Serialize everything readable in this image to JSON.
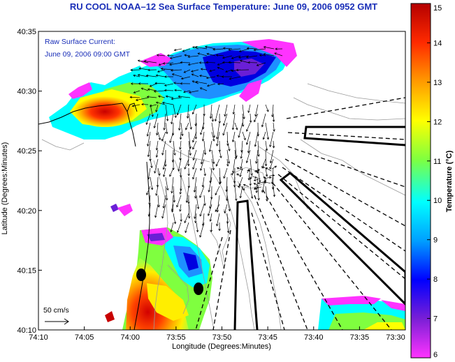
{
  "title": "RU COOL  NOAA–12  Sea Surface Temperature:  June 09, 2006 0952 GMT",
  "inset_label_1": "Raw Surface Current:",
  "inset_label_2": "June 09, 2006 09:00 GMT",
  "scale_label": "50 cm/s",
  "x_axis": {
    "label": "Longitude (Degrees:Minutes)",
    "ticks": [
      "74:10",
      "74:05",
      "74:00",
      "73:55",
      "73:50",
      "73:45",
      "73:40",
      "73:35",
      "73:30"
    ]
  },
  "y_axis": {
    "label": "Latitude (Degrees:Minutes)",
    "ticks": [
      "40:10",
      "40:15",
      "40:20",
      "40:25",
      "40:30",
      "40:35"
    ]
  },
  "colorbar": {
    "label": "Temperature (°C)",
    "ticks": [
      "6",
      "7",
      "8",
      "9",
      "10",
      "11",
      "12",
      "13",
      "14",
      "15"
    ],
    "range": [
      6,
      15
    ],
    "colors": [
      "#ff33ff",
      "#7a1fd6",
      "#0000ff",
      "#009fff",
      "#00ffff",
      "#7fff3f",
      "#ffff00",
      "#ff9a00",
      "#ff2a00",
      "#b40000"
    ]
  },
  "land_color": "#ffffff",
  "vector_color": "#000000"
}
